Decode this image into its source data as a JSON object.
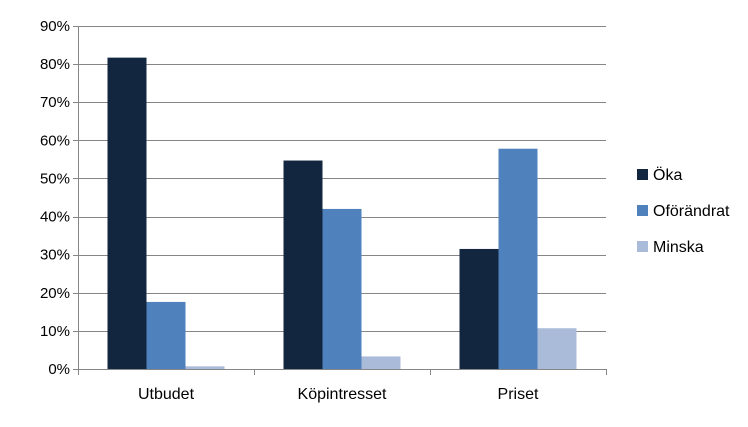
{
  "chart_data": {
    "type": "bar",
    "title": "",
    "xlabel": "",
    "ylabel": "",
    "categories": [
      "Utbudet",
      "Köpintresset",
      "Priset"
    ],
    "series": [
      {
        "name": "Öka",
        "color": "#13263f",
        "values": [
          81.7,
          54.7,
          31.5
        ]
      },
      {
        "name": "Oförändrat",
        "color": "#4f81bd",
        "values": [
          17.6,
          42.0,
          57.8
        ]
      },
      {
        "name": "Minska",
        "color": "#a9bbd9",
        "values": [
          0.7,
          3.3,
          10.7
        ]
      }
    ],
    "ylim": [
      0,
      90
    ],
    "yticks": [
      0,
      10,
      20,
      30,
      40,
      50,
      60,
      70,
      80,
      90
    ],
    "ytick_labels": [
      "0%",
      "10%",
      "20%",
      "30%",
      "40%",
      "50%",
      "60%",
      "70%",
      "80%",
      "90%"
    ],
    "grid": true,
    "legend": "right",
    "colors": {
      "grid": "#868686",
      "axis": "#868686"
    }
  }
}
